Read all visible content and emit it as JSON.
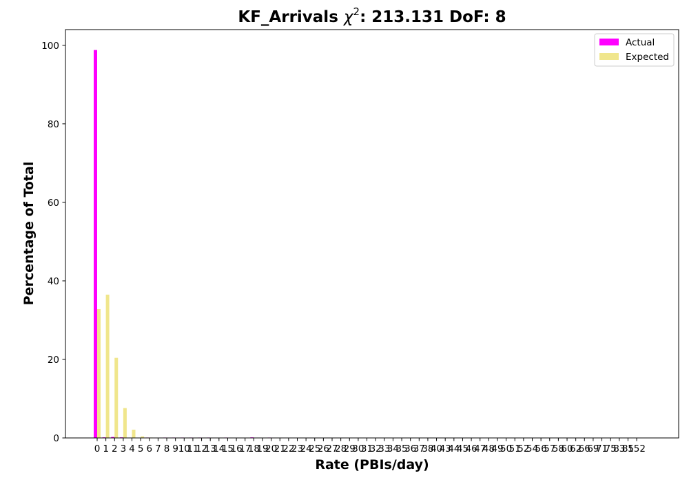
{
  "chart_data": {
    "type": "bar",
    "title": {
      "prefix": "KF_Arrivals ",
      "chi_symbol": "χ",
      "chi_power": "2",
      "suffix": ": 213.131 DoF: 8"
    },
    "xlabel": "Rate (PBIs/day)",
    "ylabel": "Percentage of Total",
    "ylim": [
      0,
      104
    ],
    "yticks": [
      0,
      20,
      40,
      60,
      80,
      100
    ],
    "grid": false,
    "legend_position": "top-right",
    "categories": [
      "0",
      "1",
      "2",
      "3",
      "4",
      "5",
      "6",
      "7",
      "8",
      "9",
      "10",
      "11",
      "12",
      "13",
      "14",
      "15",
      "16",
      "17",
      "18",
      "19",
      "20",
      "21",
      "22",
      "23",
      "24",
      "25",
      "26",
      "27",
      "28",
      "29",
      "30",
      "31",
      "32",
      "33",
      "34",
      "35",
      "36",
      "37",
      "38",
      "40",
      "43",
      "44",
      "45",
      "46",
      "47",
      "48",
      "49",
      "50",
      "51",
      "52",
      "54",
      "56",
      "57",
      "58",
      "60",
      "62",
      "66",
      "69",
      "71",
      "75",
      "83",
      "85",
      "152"
    ],
    "series": [
      {
        "name": "Actual",
        "color": "#ff00ff",
        "values": [
          98.8,
          0.15,
          0.25,
          0.15,
          0.05,
          0.05,
          0.1,
          0.05,
          0.1,
          0.1,
          0.1,
          0.1,
          0.1,
          0.1,
          0.05,
          0.1,
          0.05,
          0.05,
          0.15,
          0.05,
          0.1,
          0,
          0,
          0,
          0,
          0,
          0,
          0,
          0,
          0,
          0,
          0,
          0,
          0,
          0,
          0,
          0,
          0,
          0,
          0,
          0,
          0,
          0,
          0,
          0,
          0,
          0,
          0,
          0,
          0,
          0,
          0,
          0,
          0,
          0,
          0,
          0,
          0,
          0,
          0,
          0,
          0,
          0
        ]
      },
      {
        "name": "Expected",
        "color": "#f0e68c",
        "values": [
          32.8,
          36.5,
          20.4,
          7.6,
          2.1,
          0.4,
          0.1,
          0.02,
          0,
          0,
          0,
          0,
          0,
          0,
          0,
          0,
          0,
          0,
          0,
          0,
          0,
          0,
          0,
          0,
          0,
          0,
          0,
          0,
          0,
          0,
          0,
          0,
          0,
          0,
          0,
          0,
          0,
          0,
          0,
          0,
          0,
          0,
          0,
          0,
          0,
          0,
          0,
          0,
          0,
          0,
          0,
          0,
          0,
          0,
          0,
          0,
          0,
          0,
          0,
          0,
          0,
          0,
          0
        ]
      }
    ]
  }
}
